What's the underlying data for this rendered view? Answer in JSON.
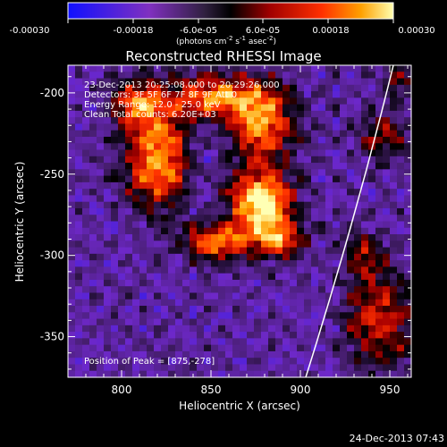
{
  "chart_data": {
    "type": "heatmap",
    "title": "Reconstructed RHESSI Image",
    "xlabel": "Heliocentric X (arcsec)",
    "ylabel": "Heliocentric Y (arcsec)",
    "xlim": [
      770,
      962
    ],
    "ylim": [
      -375,
      -183
    ],
    "xticks": [
      800,
      850,
      900,
      950
    ],
    "yticks": [
      -200,
      -250,
      -300,
      -350
    ],
    "colorbar": {
      "min": -0.0003,
      "max": 0.0003,
      "tick_labels": [
        "-0.00030",
        "-0.00018",
        "-6.0e-05",
        "6.0e-05",
        "0.00018",
        "0.00030"
      ],
      "unit_line": "(photons cm",
      "unit_parts": [
        "(photons cm",
        "-2",
        " s",
        "-1",
        " asec",
        "-2",
        ")"
      ]
    },
    "annotations": [
      "23-Dec-2013 20:25:08.000 to 20:29:26.000",
      "Detectors: 3F 5F 6F 7F 8F 9F  Att 0",
      "Energy Range: 12.0 - 25.0 keV",
      "Clean    Total counts: 6.20E+03"
    ],
    "peak_label": "Position of Peak = [875,-278]",
    "peak": [
      875,
      -278
    ],
    "limb": {
      "x_at_ymin": 903,
      "x_at_ymax": 952
    },
    "sources": [
      {
        "x": 820,
        "y": -240,
        "sx": 13,
        "sy": 22,
        "amp": 0.8
      },
      {
        "x": 808,
        "y": -206,
        "sx": 10,
        "sy": 10,
        "amp": 0.55
      },
      {
        "x": 850,
        "y": -202,
        "sx": 17,
        "sy": 9,
        "amp": 0.7
      },
      {
        "x": 878,
        "y": -218,
        "sx": 13,
        "sy": 17,
        "amp": 0.75
      },
      {
        "x": 878,
        "y": -268,
        "sx": 12,
        "sy": 14,
        "amp": 1.0
      },
      {
        "x": 853,
        "y": -292,
        "sx": 12,
        "sy": 8,
        "amp": 0.72
      },
      {
        "x": 888,
        "y": -290,
        "sx": 10,
        "sy": 8,
        "amp": 0.6
      },
      {
        "x": 945,
        "y": -340,
        "sx": 13,
        "sy": 20,
        "amp": 0.55
      },
      {
        "x": 935,
        "y": -300,
        "sx": 8,
        "sy": 10,
        "amp": 0.4
      },
      {
        "x": 946,
        "y": -227,
        "sx": 10,
        "sy": 12,
        "amp": 0.35
      },
      {
        "x": 955,
        "y": -192,
        "sx": 8,
        "sy": 8,
        "amp": 0.3
      }
    ]
  },
  "footer": {
    "timestamp": "24-Dec-2013 07:43"
  }
}
